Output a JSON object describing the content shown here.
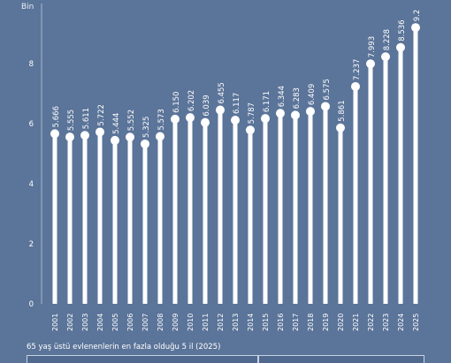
{
  "chart_data": {
    "type": "lollipop",
    "ylabel": "Bin",
    "ylim": [
      0,
      10
    ],
    "yticks": [
      0,
      2,
      4,
      6,
      8
    ],
    "categories": [
      "2001",
      "2002",
      "2003",
      "2004",
      "2005",
      "2006",
      "2007",
      "2008",
      "2009",
      "2010",
      "2011",
      "2012",
      "2013",
      "2014",
      "2015",
      "2016",
      "2017",
      "2018",
      "2019",
      "2020",
      "2021",
      "2022",
      "2023",
      "2024",
      "2025"
    ],
    "values": [
      5.666,
      5.555,
      5.611,
      5.722,
      5.444,
      5.552,
      5.325,
      5.573,
      6.15,
      6.202,
      6.039,
      6.455,
      6.117,
      5.787,
      6.171,
      6.344,
      6.283,
      6.409,
      6.575,
      5.861,
      7.237,
      7.993,
      8.228,
      8.536,
      9.2
    ],
    "value_labels": [
      "5.666",
      "5.555",
      "5.611",
      "5.722",
      "5.444",
      "5.552",
      "5.325",
      "5.573",
      "6.150",
      "6.202",
      "6.039",
      "6.455",
      "6.117",
      "5.787",
      "6.171",
      "6.344",
      "6.283",
      "6.409",
      "6.575",
      "5.861",
      "7.237",
      "7.993",
      "8.228",
      "8.536",
      "9.2"
    ],
    "grid": false
  },
  "footer": {
    "title": "65 yaş üstü evlenenlerin en fazla olduğu 5 il (2025)"
  }
}
